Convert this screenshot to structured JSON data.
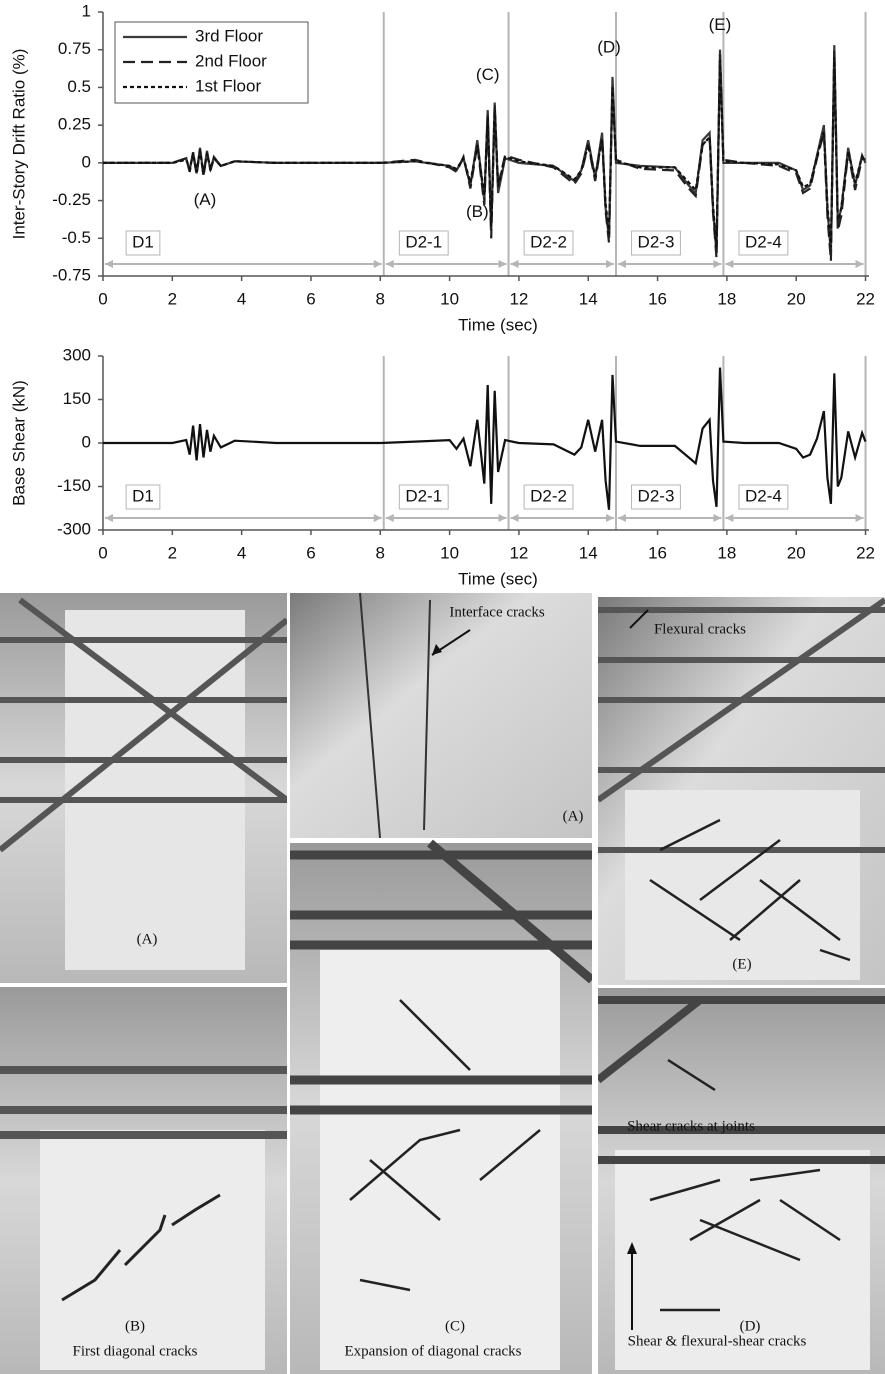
{
  "chart_data": [
    {
      "type": "line",
      "ylabel": "Inter-Story Drift Ratio (%)",
      "xlabel": "Time (sec)",
      "xlim": [
        0,
        22.1
      ],
      "xticks": [
        0,
        2,
        4,
        6,
        8,
        10,
        12,
        14,
        16,
        18,
        20,
        22
      ],
      "ylim": [
        -0.75,
        1
      ],
      "yticks": [
        -0.75,
        -0.5,
        -0.25,
        0,
        0.25,
        0.5,
        0.75,
        1
      ],
      "legend": "upper left",
      "x": [
        0,
        1,
        2,
        2.4,
        2.5,
        2.6,
        2.7,
        2.8,
        2.9,
        3.0,
        3.1,
        3.2,
        3.4,
        3.8,
        5,
        6,
        7,
        8,
        9,
        10,
        10.2,
        10.4,
        10.6,
        10.8,
        11.0,
        11.1,
        11.2,
        11.3,
        11.4,
        11.6,
        12,
        13,
        13.6,
        13.8,
        14.0,
        14.2,
        14.4,
        14.5,
        14.6,
        14.7,
        14.8,
        15.5,
        16.5,
        16.9,
        17.1,
        17.3,
        17.5,
        17.6,
        17.7,
        17.8,
        17.9,
        18.5,
        19.5,
        20.0,
        20.2,
        20.4,
        20.6,
        20.8,
        20.9,
        21.0,
        21.1,
        21.2,
        21.3,
        21.5,
        21.7,
        21.9,
        22.0
      ],
      "series": [
        {
          "name": "3rd  Floor",
          "color": "#3a3a3a",
          "dash": "solid",
          "values": [
            0,
            0,
            0,
            0.03,
            -0.05,
            0.07,
            -0.07,
            0.1,
            -0.08,
            0.08,
            -0.05,
            0.04,
            -0.02,
            0.01,
            0,
            0,
            0,
            0,
            0.01,
            -0.02,
            -0.05,
            0.03,
            -0.15,
            0.15,
            -0.25,
            0.35,
            -0.45,
            0.4,
            -0.2,
            0.03,
            0,
            -0.02,
            -0.12,
            -0.05,
            0.15,
            -0.1,
            0.2,
            -0.3,
            -0.5,
            0.57,
            0,
            -0.02,
            -0.03,
            -0.15,
            -0.2,
            0.15,
            0.2,
            -0.3,
            -0.6,
            0.75,
            0,
            0,
            0,
            -0.05,
            -0.18,
            -0.15,
            0.05,
            0.25,
            -0.3,
            -0.6,
            0.78,
            -0.4,
            -0.3,
            0.1,
            -0.15,
            0.05,
            0
          ]
        },
        {
          "name": "2nd Floor",
          "color": "#222222",
          "dash": "long-dash",
          "values": [
            0,
            0,
            0,
            0.03,
            -0.06,
            0.07,
            -0.08,
            0.09,
            -0.09,
            0.07,
            -0.05,
            0.03,
            -0.02,
            0.01,
            0,
            0,
            0,
            0,
            0.02,
            -0.03,
            -0.06,
            0.04,
            -0.17,
            0.12,
            -0.28,
            0.32,
            -0.5,
            0.38,
            -0.15,
            0.05,
            0.02,
            -0.03,
            -0.14,
            -0.07,
            0.12,
            -0.12,
            0.17,
            -0.32,
            -0.53,
            0.5,
            0.02,
            -0.04,
            -0.05,
            -0.17,
            -0.22,
            0.12,
            0.17,
            -0.33,
            -0.63,
            0.72,
            0.02,
            0,
            -0.02,
            -0.07,
            -0.2,
            -0.17,
            0.03,
            0.2,
            -0.35,
            -0.65,
            0.75,
            -0.45,
            -0.35,
            0.07,
            -0.18,
            0.03,
            0.02
          ]
        },
        {
          "name": "1st  Floor",
          "color": "#111111",
          "dash": "short-dash",
          "values": [
            0,
            0,
            0,
            0.02,
            -0.04,
            0.06,
            -0.06,
            0.08,
            -0.07,
            0.06,
            -0.04,
            0.03,
            -0.02,
            0.01,
            0,
            0,
            0,
            0,
            0.01,
            -0.02,
            -0.04,
            0.03,
            -0.13,
            0.12,
            -0.22,
            0.3,
            -0.42,
            0.35,
            -0.16,
            0.04,
            0.01,
            -0.02,
            -0.11,
            -0.05,
            0.12,
            -0.09,
            0.16,
            -0.27,
            -0.47,
            0.5,
            0.01,
            -0.03,
            -0.03,
            -0.13,
            -0.18,
            0.12,
            0.17,
            -0.28,
            -0.56,
            0.68,
            0.01,
            0,
            -0.01,
            -0.05,
            -0.16,
            -0.14,
            0.04,
            0.21,
            -0.28,
            -0.56,
            0.7,
            -0.38,
            -0.3,
            0.08,
            -0.13,
            0.04,
            0.01
          ]
        }
      ],
      "annotations": [
        {
          "text": "(A)",
          "x": 2.94,
          "y": -0.25
        },
        {
          "text": "(B)",
          "x": 10.8,
          "y": -0.33
        },
        {
          "text": "(C)",
          "x": 11.1,
          "y": 0.58
        },
        {
          "text": "(D)",
          "x": 14.6,
          "y": 0.76
        },
        {
          "text": "(E)",
          "x": 17.8,
          "y": 0.91
        }
      ],
      "phases": [
        {
          "label": "D1",
          "start": 0,
          "end": 8.1
        },
        {
          "label": "D2-1",
          "start": 8.1,
          "end": 11.7
        },
        {
          "label": "D2-2",
          "start": 11.7,
          "end": 14.8
        },
        {
          "label": "D2-3",
          "start": 14.8,
          "end": 17.9
        },
        {
          "label": "D2-4",
          "start": 17.9,
          "end": 22.0
        }
      ]
    },
    {
      "type": "line",
      "ylabel": "Base Shear (kN)",
      "xlabel": "Time (sec)",
      "xlim": [
        0,
        22.1
      ],
      "xticks": [
        0,
        2,
        4,
        6,
        8,
        10,
        12,
        14,
        16,
        18,
        20,
        22
      ],
      "ylim": [
        -300,
        300
      ],
      "yticks": [
        -300,
        -150,
        0,
        150,
        300
      ],
      "x": [
        0,
        1,
        2,
        2.4,
        2.5,
        2.6,
        2.7,
        2.8,
        2.9,
        3.0,
        3.1,
        3.2,
        3.4,
        3.8,
        5,
        6,
        7,
        8,
        9,
        10,
        10.2,
        10.4,
        10.6,
        10.8,
        11.0,
        11.1,
        11.2,
        11.3,
        11.4,
        11.6,
        12,
        13,
        13.6,
        13.8,
        14.0,
        14.2,
        14.4,
        14.5,
        14.6,
        14.7,
        14.8,
        15.5,
        16.5,
        16.9,
        17.1,
        17.3,
        17.5,
        17.6,
        17.7,
        17.8,
        17.9,
        18.5,
        19.5,
        20.0,
        20.2,
        20.4,
        20.6,
        20.8,
        20.9,
        21.0,
        21.1,
        21.2,
        21.3,
        21.5,
        21.7,
        21.9,
        22.0
      ],
      "series": [
        {
          "color": "#111111",
          "dash": "solid",
          "values": [
            0,
            0,
            0,
            10,
            -40,
            60,
            -60,
            65,
            -50,
            45,
            -30,
            25,
            -15,
            8,
            0,
            0,
            0,
            0,
            5,
            10,
            -20,
            15,
            -80,
            80,
            -140,
            200,
            -210,
            180,
            -100,
            10,
            0,
            -5,
            -40,
            -15,
            80,
            -30,
            80,
            -130,
            -230,
            235,
            5,
            -10,
            -10,
            -50,
            -70,
            50,
            80,
            -130,
            -220,
            260,
            5,
            0,
            0,
            -20,
            -50,
            -40,
            15,
            110,
            -120,
            -210,
            240,
            -150,
            -120,
            40,
            -50,
            35,
            5
          ]
        }
      ],
      "phases": [
        {
          "label": "D1",
          "start": 0,
          "end": 8.1
        },
        {
          "label": "D2-1",
          "start": 8.1,
          "end": 11.7
        },
        {
          "label": "D2-2",
          "start": 11.7,
          "end": 14.8
        },
        {
          "label": "D2-3",
          "start": 14.8,
          "end": 17.9
        },
        {
          "label": "D2-4",
          "start": 17.9,
          "end": 22.0
        }
      ]
    }
  ],
  "photos": [
    {
      "label": "(A)"
    },
    {
      "label": "(B)",
      "caption": "First diagonal cracks"
    },
    {
      "label": "(A)",
      "annotation": "Interface cracks"
    },
    {
      "label": "(C)",
      "caption": "Expansion of diagonal cracks"
    },
    {
      "label": "(E)",
      "annotation": "Flexural cracks"
    },
    {
      "label": "(D)",
      "annotation": "Shear cracks at joints",
      "caption": "Shear & flexural-shear cracks"
    }
  ]
}
